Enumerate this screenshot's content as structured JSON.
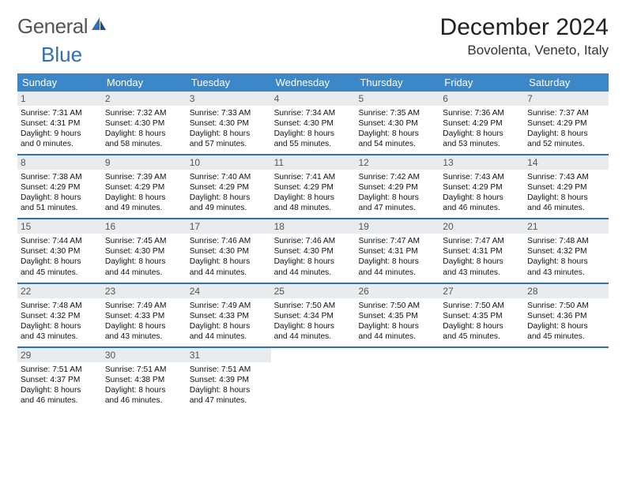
{
  "branding": {
    "logo_text_1": "General",
    "logo_text_2": "Blue",
    "logo_text_color": "#555555",
    "logo_accent_color": "#2f6fb3"
  },
  "title": {
    "month": "December 2024",
    "location": "Bovolenta, Veneto, Italy"
  },
  "colors": {
    "header_bg": "#3b87c8",
    "header_text": "#ffffff",
    "daynum_bg": "#e9ecef",
    "daynum_text": "#555555",
    "week_border": "#2f6fb3",
    "body_text": "#111111",
    "page_bg": "#ffffff"
  },
  "typography": {
    "title_fontsize": 30,
    "location_fontsize": 17,
    "dayheader_fontsize": 13,
    "daynum_fontsize": 12,
    "body_fontsize": 10.2
  },
  "layout": {
    "columns": 7,
    "rows": 5
  },
  "day_names": [
    "Sunday",
    "Monday",
    "Tuesday",
    "Wednesday",
    "Thursday",
    "Friday",
    "Saturday"
  ],
  "weeks": [
    [
      {
        "num": "1",
        "sunrise": "Sunrise: 7:31 AM",
        "sunset": "Sunset: 4:31 PM",
        "daylight1": "Daylight: 9 hours",
        "daylight2": "and 0 minutes."
      },
      {
        "num": "2",
        "sunrise": "Sunrise: 7:32 AM",
        "sunset": "Sunset: 4:30 PM",
        "daylight1": "Daylight: 8 hours",
        "daylight2": "and 58 minutes."
      },
      {
        "num": "3",
        "sunrise": "Sunrise: 7:33 AM",
        "sunset": "Sunset: 4:30 PM",
        "daylight1": "Daylight: 8 hours",
        "daylight2": "and 57 minutes."
      },
      {
        "num": "4",
        "sunrise": "Sunrise: 7:34 AM",
        "sunset": "Sunset: 4:30 PM",
        "daylight1": "Daylight: 8 hours",
        "daylight2": "and 55 minutes."
      },
      {
        "num": "5",
        "sunrise": "Sunrise: 7:35 AM",
        "sunset": "Sunset: 4:30 PM",
        "daylight1": "Daylight: 8 hours",
        "daylight2": "and 54 minutes."
      },
      {
        "num": "6",
        "sunrise": "Sunrise: 7:36 AM",
        "sunset": "Sunset: 4:29 PM",
        "daylight1": "Daylight: 8 hours",
        "daylight2": "and 53 minutes."
      },
      {
        "num": "7",
        "sunrise": "Sunrise: 7:37 AM",
        "sunset": "Sunset: 4:29 PM",
        "daylight1": "Daylight: 8 hours",
        "daylight2": "and 52 minutes."
      }
    ],
    [
      {
        "num": "8",
        "sunrise": "Sunrise: 7:38 AM",
        "sunset": "Sunset: 4:29 PM",
        "daylight1": "Daylight: 8 hours",
        "daylight2": "and 51 minutes."
      },
      {
        "num": "9",
        "sunrise": "Sunrise: 7:39 AM",
        "sunset": "Sunset: 4:29 PM",
        "daylight1": "Daylight: 8 hours",
        "daylight2": "and 49 minutes."
      },
      {
        "num": "10",
        "sunrise": "Sunrise: 7:40 AM",
        "sunset": "Sunset: 4:29 PM",
        "daylight1": "Daylight: 8 hours",
        "daylight2": "and 49 minutes."
      },
      {
        "num": "11",
        "sunrise": "Sunrise: 7:41 AM",
        "sunset": "Sunset: 4:29 PM",
        "daylight1": "Daylight: 8 hours",
        "daylight2": "and 48 minutes."
      },
      {
        "num": "12",
        "sunrise": "Sunrise: 7:42 AM",
        "sunset": "Sunset: 4:29 PM",
        "daylight1": "Daylight: 8 hours",
        "daylight2": "and 47 minutes."
      },
      {
        "num": "13",
        "sunrise": "Sunrise: 7:43 AM",
        "sunset": "Sunset: 4:29 PM",
        "daylight1": "Daylight: 8 hours",
        "daylight2": "and 46 minutes."
      },
      {
        "num": "14",
        "sunrise": "Sunrise: 7:43 AM",
        "sunset": "Sunset: 4:29 PM",
        "daylight1": "Daylight: 8 hours",
        "daylight2": "and 46 minutes."
      }
    ],
    [
      {
        "num": "15",
        "sunrise": "Sunrise: 7:44 AM",
        "sunset": "Sunset: 4:30 PM",
        "daylight1": "Daylight: 8 hours",
        "daylight2": "and 45 minutes."
      },
      {
        "num": "16",
        "sunrise": "Sunrise: 7:45 AM",
        "sunset": "Sunset: 4:30 PM",
        "daylight1": "Daylight: 8 hours",
        "daylight2": "and 44 minutes."
      },
      {
        "num": "17",
        "sunrise": "Sunrise: 7:46 AM",
        "sunset": "Sunset: 4:30 PM",
        "daylight1": "Daylight: 8 hours",
        "daylight2": "and 44 minutes."
      },
      {
        "num": "18",
        "sunrise": "Sunrise: 7:46 AM",
        "sunset": "Sunset: 4:30 PM",
        "daylight1": "Daylight: 8 hours",
        "daylight2": "and 44 minutes."
      },
      {
        "num": "19",
        "sunrise": "Sunrise: 7:47 AM",
        "sunset": "Sunset: 4:31 PM",
        "daylight1": "Daylight: 8 hours",
        "daylight2": "and 44 minutes."
      },
      {
        "num": "20",
        "sunrise": "Sunrise: 7:47 AM",
        "sunset": "Sunset: 4:31 PM",
        "daylight1": "Daylight: 8 hours",
        "daylight2": "and 43 minutes."
      },
      {
        "num": "21",
        "sunrise": "Sunrise: 7:48 AM",
        "sunset": "Sunset: 4:32 PM",
        "daylight1": "Daylight: 8 hours",
        "daylight2": "and 43 minutes."
      }
    ],
    [
      {
        "num": "22",
        "sunrise": "Sunrise: 7:48 AM",
        "sunset": "Sunset: 4:32 PM",
        "daylight1": "Daylight: 8 hours",
        "daylight2": "and 43 minutes."
      },
      {
        "num": "23",
        "sunrise": "Sunrise: 7:49 AM",
        "sunset": "Sunset: 4:33 PM",
        "daylight1": "Daylight: 8 hours",
        "daylight2": "and 43 minutes."
      },
      {
        "num": "24",
        "sunrise": "Sunrise: 7:49 AM",
        "sunset": "Sunset: 4:33 PM",
        "daylight1": "Daylight: 8 hours",
        "daylight2": "and 44 minutes."
      },
      {
        "num": "25",
        "sunrise": "Sunrise: 7:50 AM",
        "sunset": "Sunset: 4:34 PM",
        "daylight1": "Daylight: 8 hours",
        "daylight2": "and 44 minutes."
      },
      {
        "num": "26",
        "sunrise": "Sunrise: 7:50 AM",
        "sunset": "Sunset: 4:35 PM",
        "daylight1": "Daylight: 8 hours",
        "daylight2": "and 44 minutes."
      },
      {
        "num": "27",
        "sunrise": "Sunrise: 7:50 AM",
        "sunset": "Sunset: 4:35 PM",
        "daylight1": "Daylight: 8 hours",
        "daylight2": "and 45 minutes."
      },
      {
        "num": "28",
        "sunrise": "Sunrise: 7:50 AM",
        "sunset": "Sunset: 4:36 PM",
        "daylight1": "Daylight: 8 hours",
        "daylight2": "and 45 minutes."
      }
    ],
    [
      {
        "num": "29",
        "sunrise": "Sunrise: 7:51 AM",
        "sunset": "Sunset: 4:37 PM",
        "daylight1": "Daylight: 8 hours",
        "daylight2": "and 46 minutes."
      },
      {
        "num": "30",
        "sunrise": "Sunrise: 7:51 AM",
        "sunset": "Sunset: 4:38 PM",
        "daylight1": "Daylight: 8 hours",
        "daylight2": "and 46 minutes."
      },
      {
        "num": "31",
        "sunrise": "Sunrise: 7:51 AM",
        "sunset": "Sunset: 4:39 PM",
        "daylight1": "Daylight: 8 hours",
        "daylight2": "and 47 minutes."
      },
      {
        "empty": true
      },
      {
        "empty": true
      },
      {
        "empty": true
      },
      {
        "empty": true
      }
    ]
  ]
}
